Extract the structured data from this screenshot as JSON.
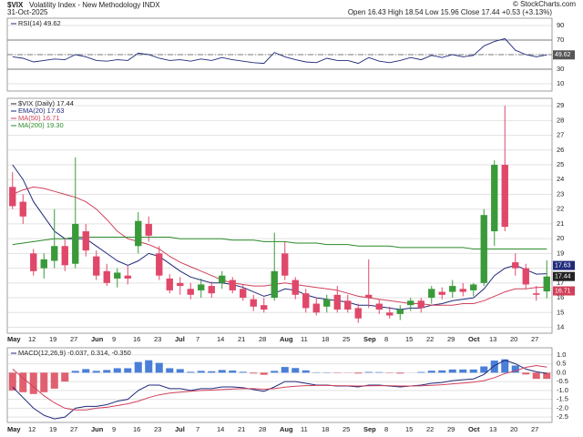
{
  "header": {
    "symbol": "$VIX",
    "name": "Volatility Index - New Methodology INDX",
    "date": "31-Oct-2025",
    "quote": "Open 16.43  High 18.54  Low 15.96  Close 17.44  +0.53 (+3.13%)",
    "credit": "© StockCharts.com"
  },
  "chart_data": [
    {
      "type": "line",
      "title": "RSI(14) 49.62",
      "color": "#1f2a7a",
      "values": [
        47,
        45,
        40,
        42,
        44,
        43,
        50,
        47,
        42,
        41,
        43,
        42,
        52,
        50,
        45,
        42,
        43,
        41,
        44,
        42,
        46,
        43,
        41,
        39,
        38,
        53,
        47,
        43,
        40,
        39,
        45,
        42,
        42,
        38,
        46,
        41,
        39,
        42,
        46,
        43,
        49,
        46,
        50,
        47,
        49,
        62,
        68,
        72,
        56,
        50,
        47,
        49.62
      ],
      "ylim": [
        0,
        100
      ],
      "yticks": [
        10,
        30,
        50,
        70,
        90
      ],
      "reference_lines": [
        70,
        50,
        30
      ],
      "grid": true
    },
    {
      "type": "candlestick",
      "name": "$VIX (Daily) 17.44",
      "up_color": "#3a9a3a",
      "down_color": "#e0486a",
      "categories": [
        "May",
        null,
        "12",
        null,
        "19",
        null,
        "27",
        null,
        "Jun",
        null,
        "9",
        null,
        "16",
        null,
        "23",
        null,
        "Jul",
        null,
        "7",
        null,
        "14",
        null,
        "21",
        null,
        "28",
        null,
        "Aug",
        null,
        "11",
        null,
        "18",
        null,
        "25",
        null,
        "Sep",
        null,
        "8",
        null,
        "15",
        null,
        "22",
        null,
        "29",
        null,
        "Oct",
        null,
        "13",
        null,
        "20",
        null,
        "27",
        null
      ],
      "open": [
        23.5,
        22.5,
        19.0,
        18.0,
        18.5,
        19.5,
        18.3,
        20.5,
        18.8,
        17.8,
        17.3,
        17.5,
        19.5,
        21.0,
        19.0,
        17.3,
        17.0,
        16.6,
        16.5,
        16.8,
        17.0,
        17.2,
        16.6,
        15.9,
        15.5,
        16.0,
        19.0,
        17.2,
        16.3,
        15.6,
        15.4,
        16.2,
        15.8,
        15.3,
        16.2,
        15.6,
        15.0,
        14.9,
        15.5,
        15.8,
        16.0,
        16.4,
        16.4,
        16.6,
        16.5,
        17.0,
        20.5,
        25.0,
        18.4,
        18.0,
        16.3,
        16.43
      ],
      "high": [
        24.5,
        23.0,
        19.3,
        19.0,
        22.0,
        20.0,
        25.5,
        21.0,
        19.2,
        18.3,
        18.0,
        18.2,
        21.8,
        21.5,
        19.5,
        17.6,
        17.4,
        17.0,
        17.3,
        17.1,
        17.8,
        17.4,
        16.9,
        16.2,
        16.0,
        20.4,
        19.8,
        17.4,
        16.6,
        16.0,
        16.2,
        16.8,
        16.2,
        15.6,
        18.6,
        15.9,
        15.4,
        15.5,
        16.0,
        16.0,
        16.8,
        16.7,
        17.2,
        17.0,
        17.0,
        22.0,
        25.3,
        29.0,
        19.0,
        18.3,
        16.8,
        18.54
      ],
      "low": [
        22.0,
        21.0,
        17.5,
        17.3,
        18.0,
        17.8,
        18.0,
        18.8,
        17.2,
        16.8,
        16.7,
        16.9,
        19.0,
        19.8,
        17.2,
        16.3,
        16.2,
        15.9,
        16.0,
        16.0,
        16.6,
        16.3,
        15.8,
        15.1,
        15.0,
        15.8,
        17.2,
        15.9,
        15.0,
        14.8,
        15.0,
        15.0,
        15.0,
        14.3,
        15.3,
        14.9,
        14.6,
        14.5,
        15.1,
        15.0,
        15.6,
        15.9,
        16.0,
        16.1,
        16.1,
        16.8,
        19.5,
        20.5,
        17.5,
        16.6,
        15.8,
        15.96
      ],
      "close": [
        22.2,
        21.5,
        17.8,
        18.6,
        19.5,
        18.2,
        21.0,
        19.2,
        17.5,
        17.0,
        17.7,
        17.3,
        21.2,
        20.2,
        17.5,
        16.5,
        16.8,
        16.2,
        16.9,
        16.3,
        17.5,
        16.5,
        16.0,
        15.4,
        15.2,
        17.8,
        17.5,
        16.2,
        15.3,
        15.0,
        15.9,
        15.2,
        15.2,
        14.6,
        16.0,
        15.2,
        14.8,
        15.2,
        15.8,
        15.3,
        16.6,
        16.2,
        16.8,
        16.4,
        16.9,
        21.6,
        25.0,
        20.8,
        18.0,
        16.9,
        16.2,
        17.44
      ],
      "series": [
        {
          "name": "EMA(20) 17.63",
          "color": "#1f2a7a",
          "values": [
            25,
            24,
            22.5,
            21.5,
            20.5,
            20,
            20,
            20,
            19.5,
            19,
            18.5,
            18.2,
            18.5,
            19,
            18.8,
            18.3,
            17.8,
            17.4,
            17.2,
            17,
            17,
            16.9,
            16.7,
            16.4,
            16.1,
            16.3,
            16.6,
            16.5,
            16.2,
            16,
            15.9,
            15.8,
            15.7,
            15.5,
            15.5,
            15.4,
            15.3,
            15.2,
            15.3,
            15.3,
            15.5,
            15.6,
            15.8,
            15.9,
            16,
            16.6,
            17.5,
            18,
            18.2,
            17.9,
            17.6,
            17.63
          ]
        },
        {
          "name": "MA(50) 16.71",
          "color": "#d0405a",
          "values": [
            23,
            23.3,
            23.5,
            23.4,
            23.2,
            23,
            22.8,
            22.5,
            22,
            21.3,
            20.5,
            20,
            19.8,
            19.6,
            19.3,
            18.8,
            18.4,
            18.1,
            17.8,
            17.5,
            17.2,
            17,
            16.9,
            16.8,
            16.8,
            16.9,
            17,
            16.9,
            16.8,
            16.7,
            16.6,
            16.5,
            16.3,
            16.1,
            16,
            15.9,
            15.8,
            15.7,
            15.6,
            15.6,
            15.5,
            15.5,
            15.5,
            15.6,
            15.6,
            15.8,
            16.1,
            16.4,
            16.6,
            16.6,
            16.7,
            16.71
          ]
        },
        {
          "name": "MA(200) 19.30",
          "color": "#2a8a2a",
          "values": [
            19.6,
            19.7,
            19.8,
            19.9,
            20,
            20,
            20.1,
            20.1,
            20.1,
            20.1,
            20.1,
            20.1,
            20.1,
            20.1,
            20.1,
            20.1,
            20,
            20,
            20,
            20,
            20,
            19.9,
            19.9,
            19.9,
            19.8,
            19.8,
            19.8,
            19.7,
            19.7,
            19.7,
            19.6,
            19.6,
            19.6,
            19.5,
            19.5,
            19.5,
            19.5,
            19.4,
            19.4,
            19.4,
            19.4,
            19.4,
            19.4,
            19.4,
            19.3,
            19.3,
            19.3,
            19.3,
            19.3,
            19.3,
            19.3,
            19.3
          ]
        }
      ],
      "ylim": [
        13.6,
        29.5
      ],
      "yticks": [
        14,
        15,
        16,
        17,
        18,
        19,
        20,
        21,
        22,
        23,
        24,
        25,
        26,
        27,
        28,
        29
      ],
      "grid": true
    },
    {
      "type": "macd",
      "title": "MACD(12,26,9) -0.037, 0.314, -0.350",
      "series": [
        {
          "kind": "histogram",
          "color": "#4a7fd8",
          "negative_color": "#e06070",
          "values": [
            -1.0,
            -1.1,
            -1.2,
            -1.1,
            -0.9,
            -0.5,
            0.1,
            0.2,
            0.1,
            0.15,
            0.25,
            0.25,
            0.6,
            0.7,
            0.55,
            0.25,
            0.2,
            0.05,
            0.1,
            0.08,
            0.15,
            0.12,
            0.05,
            -0.05,
            -0.12,
            0.1,
            0.32,
            0.26,
            0.13,
            0.02,
            0.02,
            -0.02,
            -0.01,
            -0.05,
            0.04,
            0.03,
            -0.02,
            -0.05,
            0,
            0.04,
            0.11,
            0.13,
            0.18,
            0.18,
            0.18,
            0.35,
            0.68,
            0.75,
            0.4,
            -0.1,
            -0.35,
            -0.35
          ]
        },
        {
          "kind": "line",
          "color": "#1f2a7a",
          "values": [
            -0.8,
            -1.4,
            -2.0,
            -2.4,
            -2.6,
            -2.5,
            -2.0,
            -1.9,
            -1.9,
            -1.8,
            -1.6,
            -1.5,
            -1.0,
            -0.7,
            -0.7,
            -0.9,
            -0.9,
            -1.0,
            -0.9,
            -0.9,
            -0.8,
            -0.8,
            -0.85,
            -0.95,
            -1.05,
            -0.8,
            -0.5,
            -0.5,
            -0.6,
            -0.7,
            -0.7,
            -0.75,
            -0.75,
            -0.8,
            -0.7,
            -0.7,
            -0.75,
            -0.8,
            -0.75,
            -0.7,
            -0.6,
            -0.55,
            -0.45,
            -0.4,
            -0.35,
            -0.1,
            0.4,
            0.7,
            0.5,
            0.2,
            0.05,
            -0.037
          ]
        },
        {
          "kind": "line",
          "color": "#d0405a",
          "values": [
            0.2,
            -0.3,
            -0.8,
            -1.3,
            -1.7,
            -2.0,
            -2.1,
            -2.1,
            -2.0,
            -1.95,
            -1.85,
            -1.75,
            -1.6,
            -1.4,
            -1.25,
            -1.15,
            -1.1,
            -1.05,
            -1.0,
            -0.98,
            -0.95,
            -0.92,
            -0.9,
            -0.9,
            -0.93,
            -0.9,
            -0.82,
            -0.76,
            -0.73,
            -0.72,
            -0.72,
            -0.73,
            -0.74,
            -0.75,
            -0.74,
            -0.73,
            -0.73,
            -0.75,
            -0.75,
            -0.74,
            -0.71,
            -0.68,
            -0.63,
            -0.58,
            -0.53,
            -0.45,
            -0.28,
            -0.05,
            0.1,
            0.3,
            0.4,
            0.314
          ]
        }
      ],
      "ylim": [
        -2.8,
        1.4
      ],
      "yticks": [
        {
          "value": 1,
          "label": "1.0"
        },
        0.5,
        {
          "value": 0,
          "label": "0.0"
        },
        -0.5,
        {
          "value": -1,
          "label": "-1.0"
        },
        -1.5,
        {
          "value": -2,
          "label": "-2.0"
        },
        -2.5
      ],
      "grid": true
    }
  ]
}
